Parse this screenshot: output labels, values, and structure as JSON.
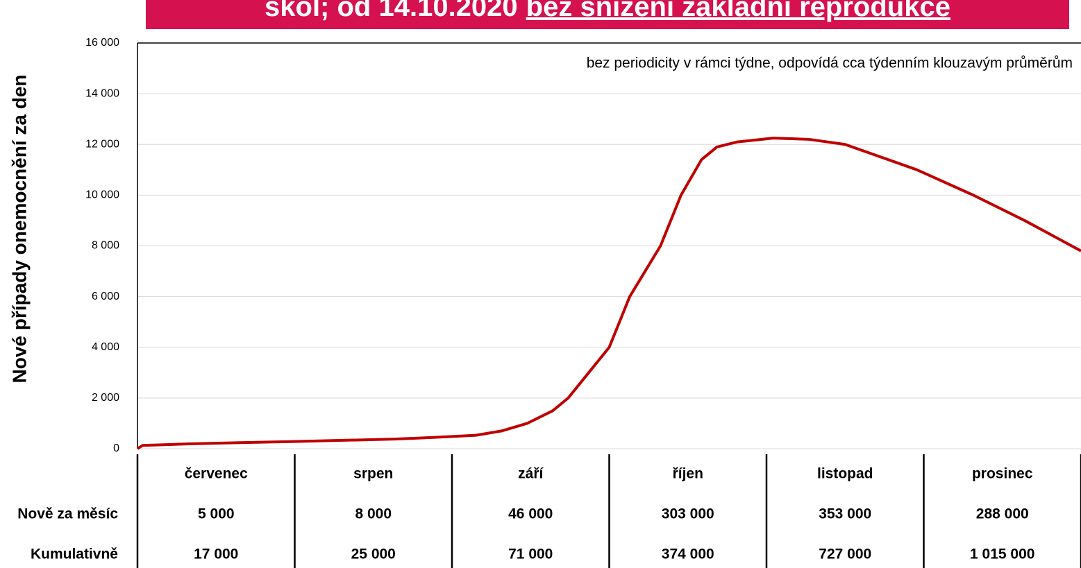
{
  "banner": {
    "text": "škol; od 14.10.2020",
    "underlined": "bez snížení základní reprodukce"
  },
  "chart_data": {
    "type": "line",
    "ylabel": "Nové případy onemocnění za den",
    "annotation": "bez periodicity v rámci týdne, odpovídá cca týdenním klouzavým průměrům",
    "x": [
      0,
      1,
      10,
      20,
      30,
      40,
      50,
      55,
      60,
      66,
      71,
      76,
      81,
      84,
      88,
      92,
      96,
      99,
      102,
      106,
      110,
      113,
      117,
      124,
      131,
      138,
      152,
      163,
      173,
      184
    ],
    "xlim": [
      0,
      184
    ],
    "series": [
      {
        "name": "Nové případy",
        "color": "#c00000",
        "values": [
          0,
          130,
          190,
          240,
          280,
          330,
          380,
          420,
          470,
          530,
          700,
          1000,
          1500,
          2000,
          3000,
          4000,
          6000,
          7000,
          8000,
          10000,
          11400,
          11900,
          12100,
          12250,
          12200,
          12000,
          11000,
          10000,
          9000,
          7800
        ]
      }
    ],
    "ylim": [
      0,
      16000
    ],
    "yticks": [
      0,
      {
        "value": 2000,
        "label": "2 000"
      },
      {
        "value": 4000,
        "label": "4 000"
      },
      {
        "value": 6000,
        "label": "6 000"
      },
      {
        "value": 8000,
        "label": "8 000"
      },
      {
        "value": 10000,
        "label": "10 000"
      },
      {
        "value": 12000,
        "label": "12 000"
      },
      {
        "value": 14000,
        "label": "14 000"
      },
      {
        "value": 16000,
        "label": "16 000"
      }
    ],
    "grid": true
  },
  "table": {
    "columns": [
      "červenec",
      "srpen",
      "září",
      "říjen",
      "listopad",
      "prosinec"
    ],
    "rows": [
      {
        "label": "Nově za měsíc",
        "values": [
          "5 000",
          "8 000",
          "46 000",
          "303 000",
          "353 000",
          "288 000"
        ]
      },
      {
        "label": "Kumulativně",
        "values": [
          "17 000",
          "25 000",
          "71 000",
          "374 000",
          "727 000",
          "1 015 000"
        ]
      }
    ]
  }
}
